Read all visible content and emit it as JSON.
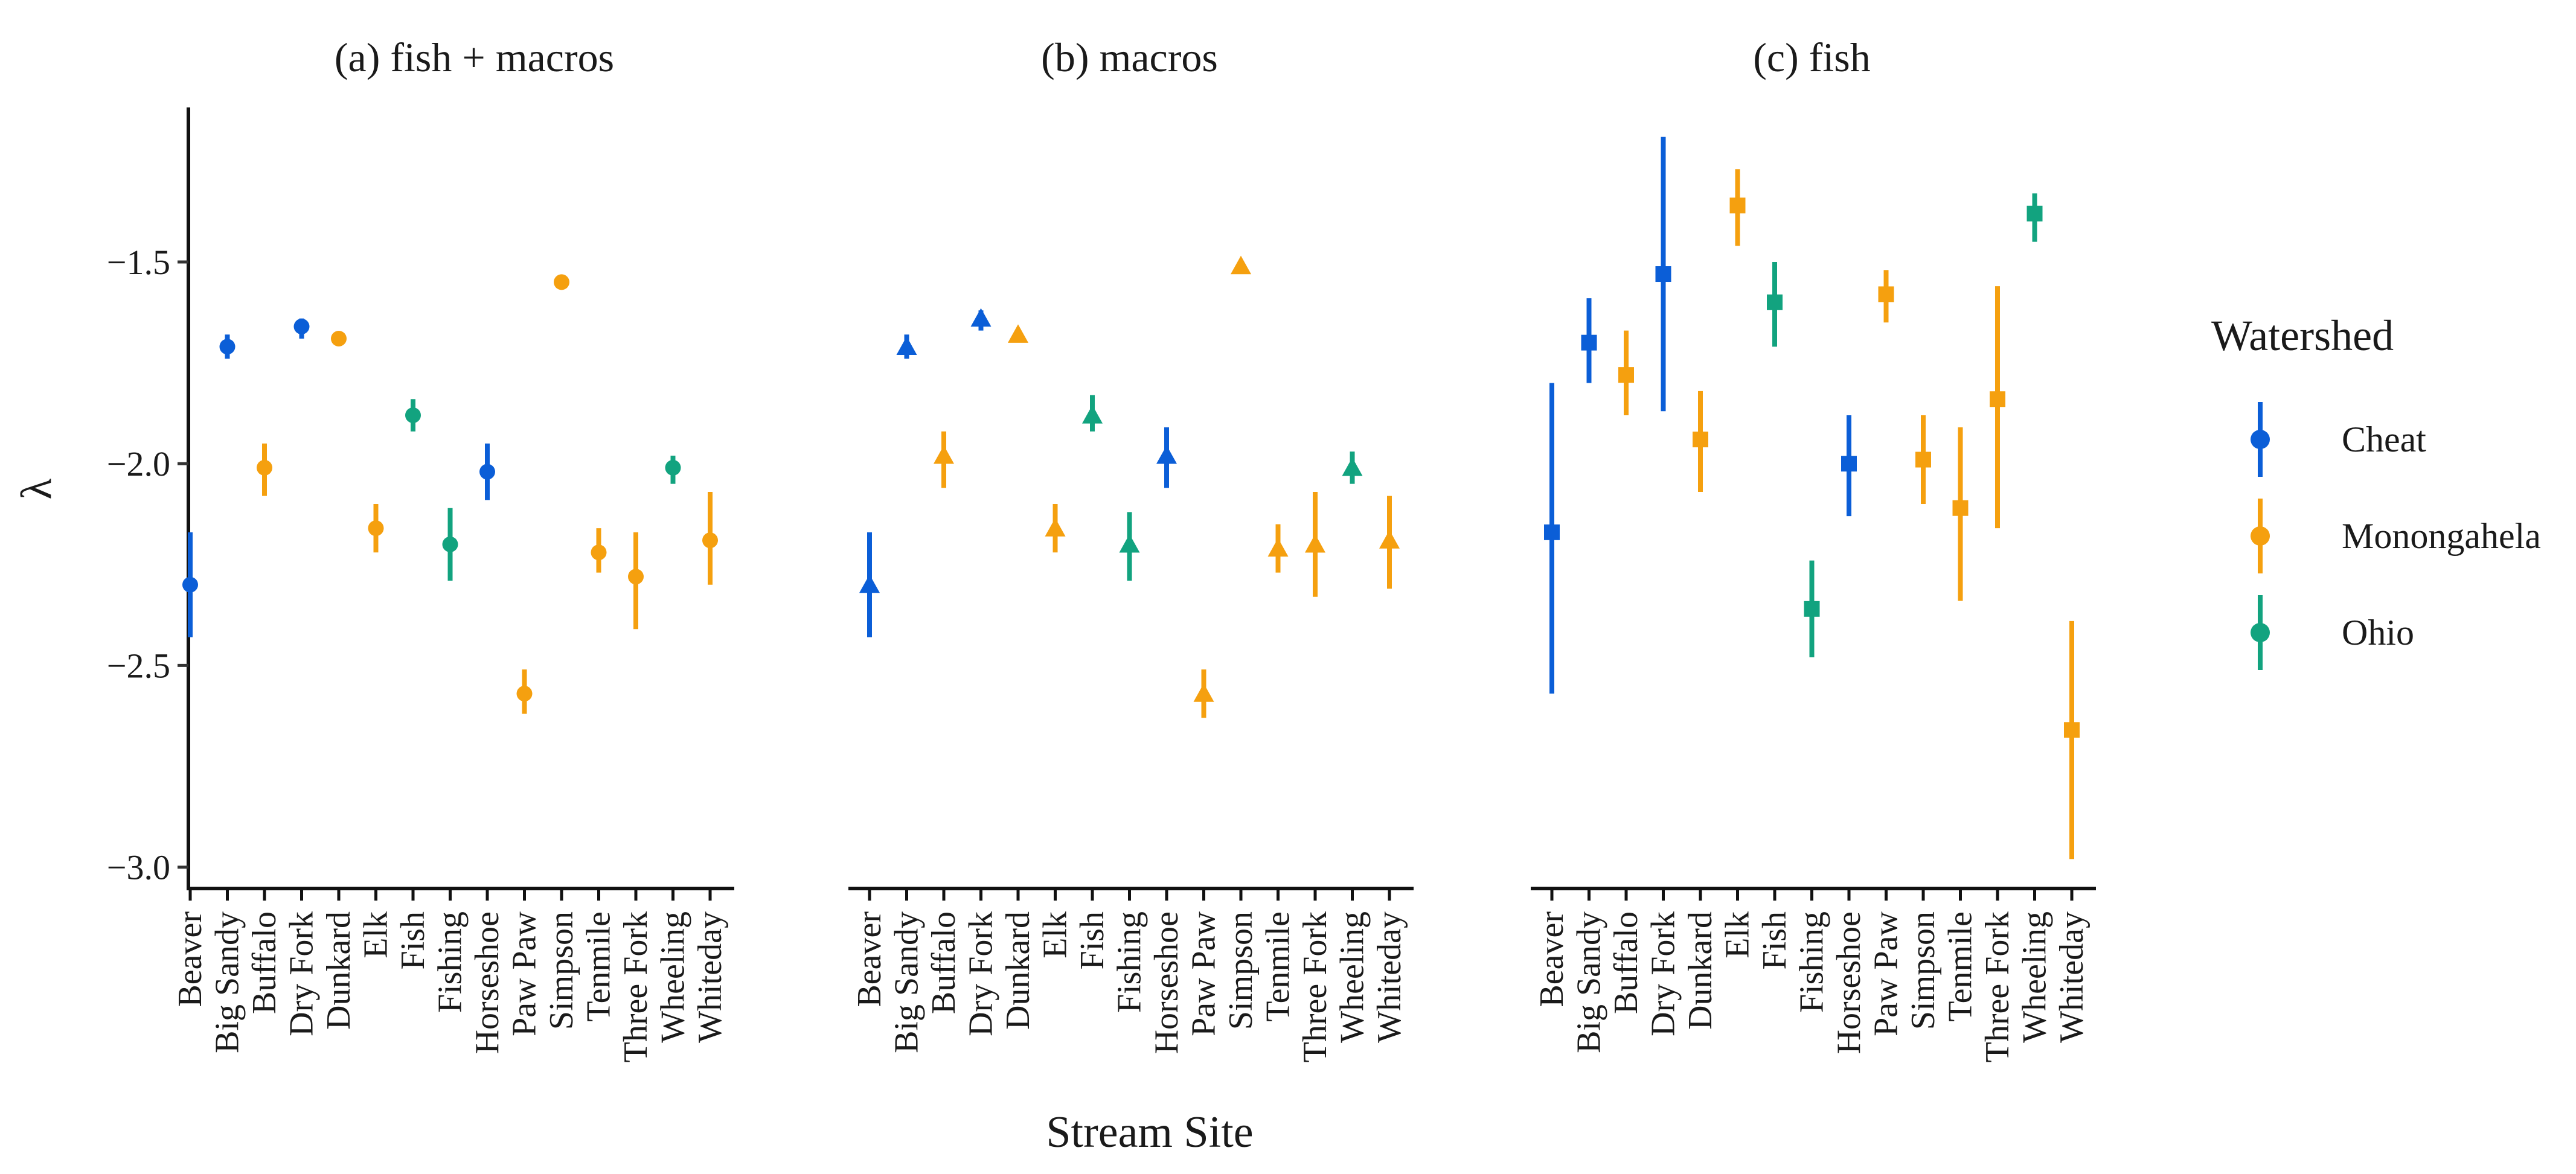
{
  "figure": {
    "xlabel": "Stream Site",
    "ylabel": "λ",
    "legend": {
      "title": "Watershed",
      "placement": "right",
      "entries": [
        {
          "name": "Cheat",
          "color": "#0b5ed7"
        },
        {
          "name": "Monongahela",
          "color": "#f5a00f"
        },
        {
          "name": "Ohio",
          "color": "#12a37f"
        }
      ]
    }
  },
  "chart_data": [
    {
      "type": "scatter",
      "title": "(a) fish + macros",
      "marker": "circle",
      "xlabel": "Stream Site",
      "ylabel": "λ",
      "ylim": [
        -3.05,
        -1.12
      ],
      "yticks": [
        -1.5,
        -2.0,
        -2.5,
        -3.0
      ],
      "ytick_labels": [
        "−1.5",
        "−2.0",
        "−2.5",
        "−3.0"
      ],
      "categories": [
        "Beaver",
        "Big Sandy",
        "Buffalo",
        "Dry Fork",
        "Dunkard",
        "Elk",
        "Fish",
        "Fishing",
        "Horseshoe",
        "Paw Paw",
        "Simpson",
        "Tenmile",
        "Three Fork",
        "Wheeling",
        "Whiteday"
      ],
      "watershed": [
        "Cheat",
        "Cheat",
        "Monongahela",
        "Cheat",
        "Monongahela",
        "Monongahela",
        "Ohio",
        "Ohio",
        "Cheat",
        "Monongahela",
        "Monongahela",
        "Monongahela",
        "Monongahela",
        "Ohio",
        "Monongahela"
      ],
      "values": [
        -2.3,
        -1.71,
        -2.01,
        -1.66,
        -1.69,
        -2.16,
        -1.88,
        -2.2,
        -2.02,
        -2.57,
        -1.55,
        -2.22,
        -2.28,
        -2.01,
        -2.19
      ],
      "lower": [
        -2.43,
        -1.74,
        -2.08,
        -1.69,
        -1.7,
        -2.22,
        -1.92,
        -2.29,
        -2.09,
        -2.62,
        -1.56,
        -2.27,
        -2.41,
        -2.05,
        -2.3
      ],
      "upper": [
        -2.17,
        -1.68,
        -1.95,
        -1.64,
        -1.68,
        -2.1,
        -1.84,
        -2.11,
        -1.95,
        -2.51,
        -1.54,
        -2.16,
        -2.17,
        -1.98,
        -2.07
      ]
    },
    {
      "type": "scatter",
      "title": "(b) macros",
      "marker": "triangle",
      "ylim": [
        -3.05,
        -1.12
      ],
      "categories": [
        "Beaver",
        "Big Sandy",
        "Buffalo",
        "Dry Fork",
        "Dunkard",
        "Elk",
        "Fish",
        "Fishing",
        "Horseshoe",
        "Paw Paw",
        "Simpson",
        "Tenmile",
        "Three Fork",
        "Wheeling",
        "Whiteday"
      ],
      "watershed": [
        "Cheat",
        "Cheat",
        "Monongahela",
        "Cheat",
        "Monongahela",
        "Monongahela",
        "Ohio",
        "Ohio",
        "Cheat",
        "Monongahela",
        "Monongahela",
        "Monongahela",
        "Monongahela",
        "Ohio",
        "Monongahela"
      ],
      "values": [
        -2.3,
        -1.71,
        -1.98,
        -1.64,
        -1.68,
        -2.16,
        -1.88,
        -2.2,
        -1.98,
        -2.57,
        -1.51,
        -2.21,
        -2.2,
        -2.01,
        -2.19
      ],
      "lower": [
        -2.43,
        -1.74,
        -2.06,
        -1.67,
        -1.69,
        -2.22,
        -1.92,
        -2.29,
        -2.06,
        -2.63,
        -1.52,
        -2.27,
        -2.33,
        -2.05,
        -2.31
      ],
      "upper": [
        -2.17,
        -1.68,
        -1.92,
        -1.62,
        -1.67,
        -2.1,
        -1.83,
        -2.12,
        -1.91,
        -2.51,
        -1.5,
        -2.15,
        -2.07,
        -1.97,
        -2.08
      ]
    },
    {
      "type": "scatter",
      "title": "(c) fish",
      "marker": "square",
      "ylim": [
        -3.05,
        -1.12
      ],
      "categories": [
        "Beaver",
        "Big Sandy",
        "Buffalo",
        "Dry Fork",
        "Dunkard",
        "Elk",
        "Fish",
        "Fishing",
        "Horseshoe",
        "Paw Paw",
        "Simpson",
        "Tenmile",
        "Three Fork",
        "Wheeling",
        "Whiteday"
      ],
      "watershed": [
        "Cheat",
        "Cheat",
        "Monongahela",
        "Cheat",
        "Monongahela",
        "Monongahela",
        "Ohio",
        "Ohio",
        "Cheat",
        "Monongahela",
        "Monongahela",
        "Monongahela",
        "Monongahela",
        "Ohio",
        "Monongahela"
      ],
      "values": [
        -2.17,
        -1.7,
        -1.78,
        -1.53,
        -1.94,
        -1.36,
        -1.6,
        -2.36,
        -2.0,
        -1.58,
        -1.99,
        -2.11,
        -1.84,
        -1.38,
        -2.66
      ],
      "lower": [
        -2.57,
        -1.8,
        -1.88,
        -1.87,
        -2.07,
        -1.46,
        -1.71,
        -2.48,
        -2.13,
        -1.65,
        -2.1,
        -2.34,
        -2.16,
        -1.45,
        -2.98
      ],
      "upper": [
        -1.8,
        -1.59,
        -1.67,
        -1.19,
        -1.82,
        -1.27,
        -1.5,
        -2.24,
        -1.88,
        -1.52,
        -1.88,
        -1.91,
        -1.56,
        -1.33,
        -2.39
      ]
    }
  ]
}
